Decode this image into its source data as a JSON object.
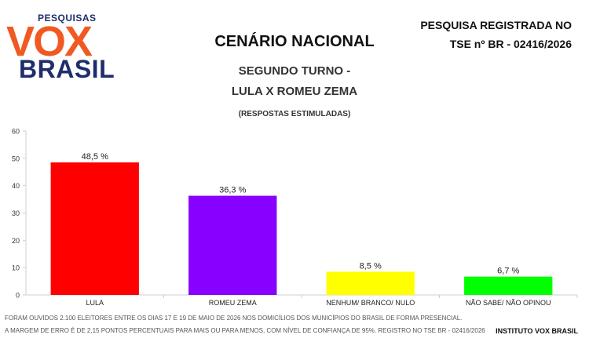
{
  "logo": {
    "small": "PESQUISAS",
    "vox": "VOX",
    "brasil": "BRASIL"
  },
  "header": {
    "title": "CENÁRIO NACIONAL",
    "subtitle_line1": "SEGUNDO TURNO -",
    "subtitle_line2": "LULA X ROMEU ZEMA",
    "note": "(RESPOSTAS ESTIMULADAS)",
    "registration_line1": "PESQUISA REGISTRADA NO",
    "registration_line2": "TSE nº BR - 02416/2026"
  },
  "chart_data": {
    "type": "bar",
    "categories": [
      "LULA",
      "ROMEU ZEMA",
      "NENHUM/ BRANCO/ NULO",
      "NÃO SABE/ NÃO OPINOU"
    ],
    "values": [
      48.5,
      36.3,
      8.5,
      6.7
    ],
    "data_labels": [
      "48,5 %",
      "36,3 %",
      "8,5 %",
      "6,7 %"
    ],
    "colors": [
      "#ff0000",
      "#8800ff",
      "#ffff00",
      "#00ff00"
    ],
    "ylim": [
      0,
      60
    ],
    "yticks": [
      0,
      10,
      20,
      30,
      40,
      50,
      60
    ],
    "grid": false,
    "legend": "none"
  },
  "footer": {
    "line1": "FORAM OUVIDOS 2.100 ELEITORES ENTRE OS DIAS 17 E 19 DE MAIO DE 2026 NOS DOMICÍLIOS DOS MUNICÍPIOS DO BRASIL DE FORMA PRESENCIAL.",
    "line2": "A MARGEM DE ERRO É DE 2,15 PONTOS PERCENTUAIS PARA MAIS OU PARA MENOS, COM NÍVEL DE CONFIANÇA DE 95%. REGISTRO NO TSE BR - 02416/2026",
    "institute": "INSTITUTO VOX BRASIL"
  }
}
